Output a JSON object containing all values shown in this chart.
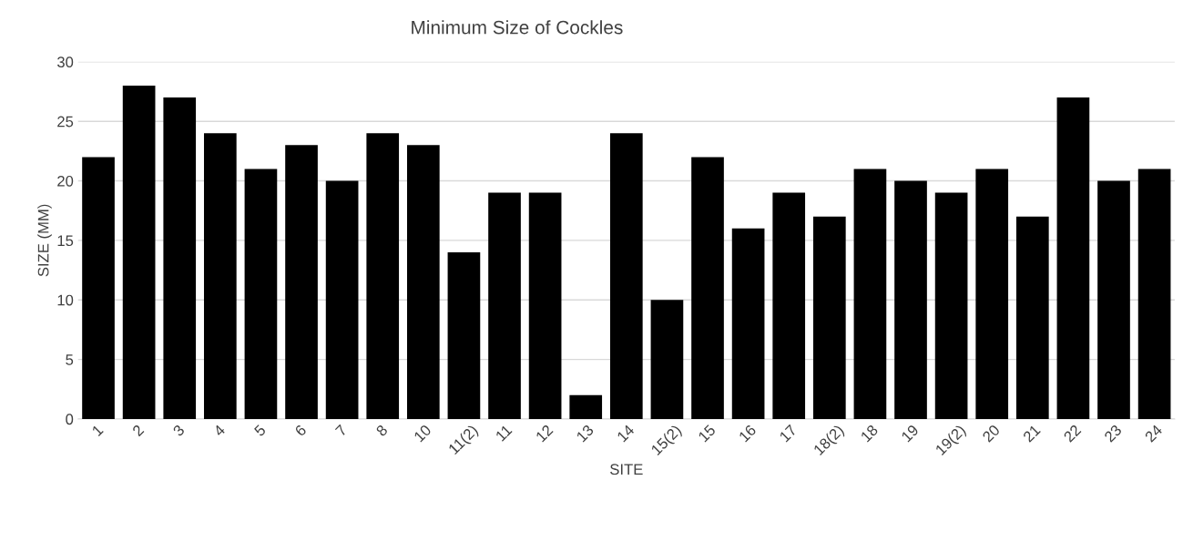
{
  "chart_data": {
    "type": "bar",
    "title": "Minimum Size of Cockles",
    "xlabel": "SITE",
    "ylabel": "SIZE (MM)",
    "categories": [
      "1",
      "2",
      "3",
      "4",
      "5",
      "6",
      "7",
      "8",
      "10",
      "11(2)",
      "11",
      "12",
      "13",
      "14",
      "15(2)",
      "15",
      "16",
      "17",
      "18(2)",
      "18",
      "19",
      "19(2)",
      "20",
      "21",
      "22",
      "23",
      "24"
    ],
    "values": [
      22,
      28,
      27,
      24,
      21,
      23,
      20,
      24,
      23,
      14,
      19,
      19,
      2,
      24,
      10,
      22,
      16,
      19,
      17,
      21,
      20,
      19,
      21,
      17,
      27,
      20,
      21
    ],
    "color": "#000000",
    "ylim": [
      0,
      30
    ],
    "yticks": [
      0,
      5,
      10,
      15,
      20,
      25,
      30
    ],
    "grid": "y",
    "legend": false
  }
}
